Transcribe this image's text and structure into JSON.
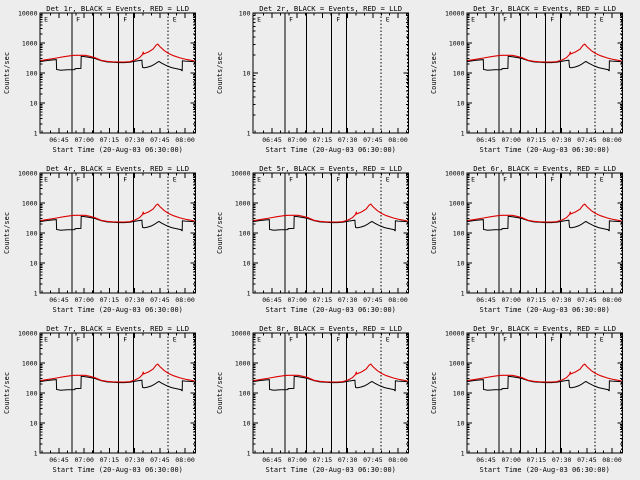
{
  "page": {
    "background": "#ededed",
    "foreground": "#000000",
    "accent_red": "#dd0000"
  },
  "axis": {
    "xlabel": "Start Time (20-Aug-03 06:30:00)",
    "ylabel": "Counts/sec",
    "x_domain_minutes": [
      3.7,
      96.2
    ],
    "x_ticks": [
      {
        "min": 15,
        "label": "06:45"
      },
      {
        "min": 30,
        "label": "07:00"
      },
      {
        "min": 45,
        "label": "07:15"
      },
      {
        "min": 60,
        "label": "07:30"
      },
      {
        "min": 75,
        "label": "07:45"
      },
      {
        "min": 90,
        "label": "08:00"
      }
    ],
    "x_minor_step_min": 5,
    "y_tick_labels_4dec": [
      "10000",
      "1000",
      "100",
      "10",
      "1"
    ],
    "y_tick_labels_2dec": [
      "100",
      "10",
      "1"
    ]
  },
  "event_lines": {
    "solid_min": [
      22.6,
      35.4,
      50.3,
      59.2
    ],
    "dotted_min": [
      79.7,
      95.5
    ]
  },
  "flags": [
    {
      "t_min": 5.0,
      "label": "E"
    },
    {
      "t_min": 24.0,
      "label": "F"
    },
    {
      "t_min": 52.0,
      "label": "F"
    },
    {
      "t_min": 81.5,
      "label": "E"
    }
  ],
  "panels": [
    {
      "id": "det-1r",
      "title": "Det 1r, BLACK = Events, RED = LLD",
      "has_data": true,
      "y_decades": 4
    },
    {
      "id": "det-2r",
      "title": "Det 2r, BLACK = Events, RED = LLD",
      "has_data": false,
      "y_decades": 2
    },
    {
      "id": "det-3r",
      "title": "Det 3r, BLACK = Events, RED = LLD",
      "has_data": true,
      "y_decades": 4
    },
    {
      "id": "det-4r",
      "title": "Det 4r, BLACK = Events, RED = LLD",
      "has_data": true,
      "y_decades": 4
    },
    {
      "id": "det-5r",
      "title": "Det 5r, BLACK = Events, RED = LLD",
      "has_data": true,
      "y_decades": 4
    },
    {
      "id": "det-6r",
      "title": "Det 6r, BLACK = Events, RED = LLD",
      "has_data": true,
      "y_decades": 4
    },
    {
      "id": "det-7r",
      "title": "Det 7r, BLACK = Events, RED = LLD",
      "has_data": true,
      "y_decades": 4
    },
    {
      "id": "det-8r",
      "title": "Det 8r, BLACK = Events, RED = LLD",
      "has_data": true,
      "y_decades": 4
    },
    {
      "id": "det-9r",
      "title": "Det 9r, BLACK = Events, RED = LLD",
      "has_data": true,
      "y_decades": 4
    }
  ],
  "chart_data": {
    "type": "line",
    "y_scale": "log",
    "ylim": [
      1,
      10000
    ],
    "x_axis": "time, minutes after 06:30:00 20-Aug-03",
    "grid": false,
    "series": [
      {
        "name": "Events",
        "color": "#000000",
        "points": [
          [
            3.7,
            240
          ],
          [
            8,
            262
          ],
          [
            11,
            272
          ],
          [
            13.4,
            280
          ],
          [
            13.6,
            131
          ],
          [
            16,
            124
          ],
          [
            20,
            128
          ],
          [
            24.4,
            130
          ],
          [
            24.6,
            140
          ],
          [
            28,
            142
          ],
          [
            28.2,
            360
          ],
          [
            30,
            352
          ],
          [
            33,
            330
          ],
          [
            36.4,
            305
          ],
          [
            40,
            258
          ],
          [
            43.4,
            235
          ],
          [
            47,
            228
          ],
          [
            50.3,
            222
          ],
          [
            54,
            222
          ],
          [
            57,
            228
          ],
          [
            60.2,
            246
          ],
          [
            62.8,
            262
          ],
          [
            64.3,
            268
          ],
          [
            64.5,
            190
          ],
          [
            64.8,
            152
          ],
          [
            66,
            150
          ],
          [
            68,
            158
          ],
          [
            70,
            172
          ],
          [
            72,
            198
          ],
          [
            73.5,
            228
          ],
          [
            74.5,
            242
          ],
          [
            76,
            214
          ],
          [
            78,
            188
          ],
          [
            80,
            166
          ],
          [
            82,
            151
          ],
          [
            84,
            142
          ],
          [
            86,
            135
          ],
          [
            87.6,
            130
          ],
          [
            87.8,
            123
          ],
          [
            88.3,
            120
          ],
          [
            88.4,
            256
          ],
          [
            90,
            250
          ],
          [
            93,
            244
          ],
          [
            95.8,
            237
          ]
        ]
      },
      {
        "name": "LLD",
        "color": "#dd0000",
        "points": [
          [
            3.7,
            258
          ],
          [
            8,
            280
          ],
          [
            13.6,
            316
          ],
          [
            18,
            350
          ],
          [
            22,
            378
          ],
          [
            24.5,
            388
          ],
          [
            30.5,
            388
          ],
          [
            33,
            362
          ],
          [
            36.4,
            324
          ],
          [
            40,
            265
          ],
          [
            43.4,
            245
          ],
          [
            47,
            236
          ],
          [
            50.3,
            233
          ],
          [
            54,
            233
          ],
          [
            57,
            238
          ],
          [
            60.2,
            271
          ],
          [
            62.8,
            324
          ],
          [
            64.8,
            420
          ],
          [
            65.1,
            510
          ],
          [
            65.4,
            432
          ],
          [
            68.2,
            500
          ],
          [
            71,
            628
          ],
          [
            72.7,
            840
          ],
          [
            73.8,
            920
          ],
          [
            75,
            756
          ],
          [
            77.5,
            566
          ],
          [
            80.1,
            451
          ],
          [
            83.1,
            377
          ],
          [
            87.2,
            316
          ],
          [
            91.2,
            279
          ],
          [
            95.8,
            251
          ]
        ]
      }
    ]
  }
}
